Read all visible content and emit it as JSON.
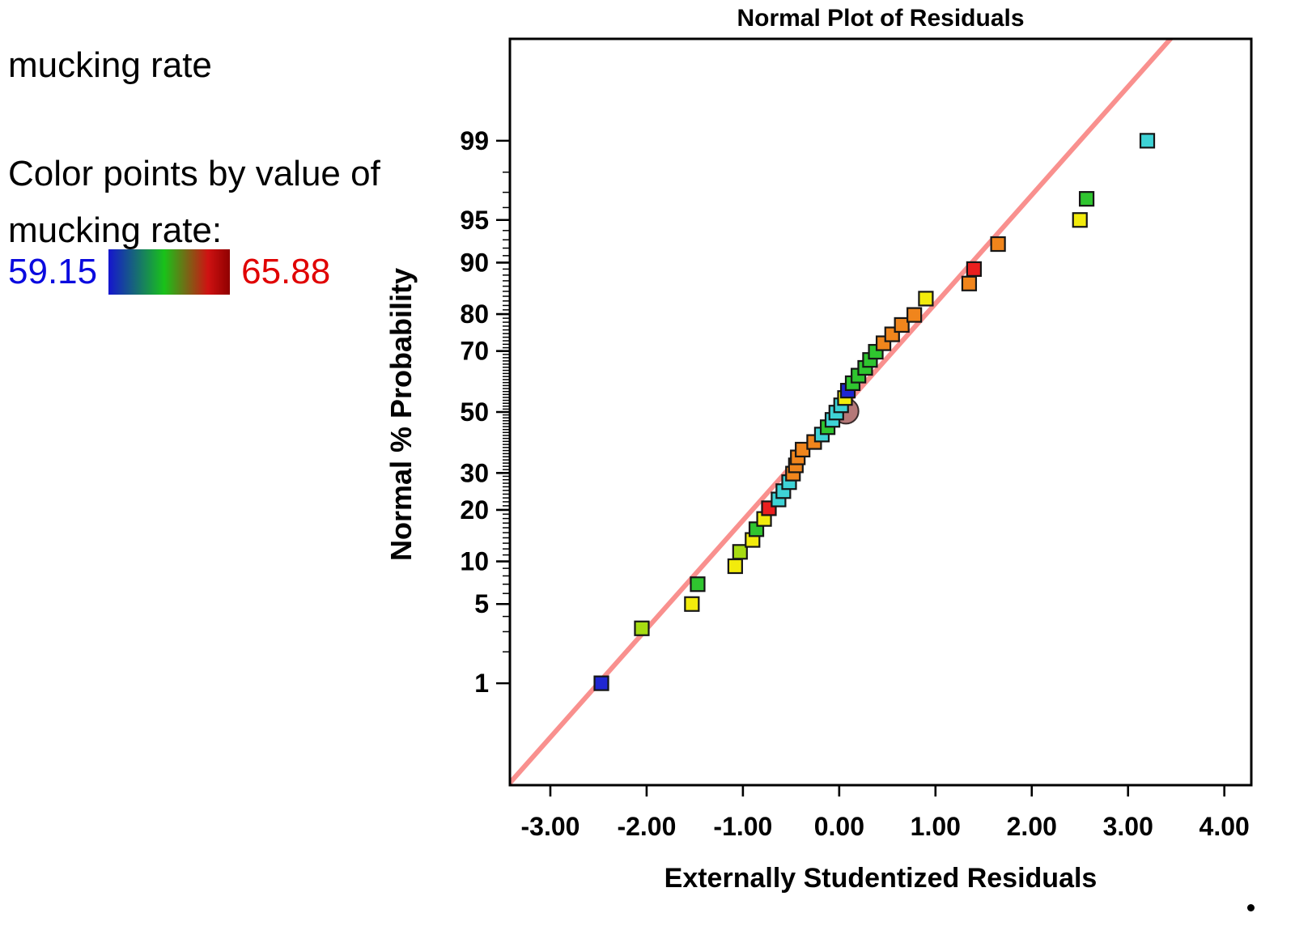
{
  "legend": {
    "dataset_label": "mucking rate",
    "color_by_line1": "Color points by value of",
    "color_by_line2": "mucking rate:",
    "min_value": "59.15",
    "max_value": "65.88",
    "min_color": "#0a0adf",
    "max_color": "#e00000",
    "gradient_colors": [
      "#1515cf",
      "#19c219",
      "#cf1212",
      "#8f0000"
    ]
  },
  "chart_data": {
    "type": "scatter",
    "title": "Normal Plot of Residuals",
    "xlabel": "Externally Studentized Residuals",
    "ylabel": "Normal % Probability",
    "y_scale": "normal-probability",
    "grid": false,
    "xlim": [
      -3.42,
      4.28
    ],
    "probit_lim": [
      -3.2,
      3.2
    ],
    "x_ticks": [
      -3,
      -2,
      -1,
      0,
      1,
      2,
      3,
      4
    ],
    "x_tick_labels": [
      "-3.00",
      "-2.00",
      "-1.00",
      "0.00",
      "1.00",
      "2.00",
      "3.00",
      "4.00"
    ],
    "y_ticks": [
      1,
      5,
      10,
      20,
      30,
      50,
      70,
      80,
      90,
      95,
      99
    ],
    "fit_line": {
      "slope": 0.93,
      "intercept": 0.0,
      "color": "#f9908e",
      "width": 6
    },
    "marker": {
      "size": 17,
      "stroke": "#161616"
    },
    "colors": {
      "blue": "#2026d2",
      "cyan": "#3ed3d6",
      "green": "#2fc52f",
      "yellowgreen": "#a6dc12",
      "yellow": "#f2eb0c",
      "orange": "#f0851c",
      "red": "#ea1f1f"
    },
    "mean_point": {
      "x": 0.07,
      "p": 50.3,
      "radius": 15.5,
      "color": "#b57878",
      "stroke": "#3a2c2c"
    },
    "points": [
      {
        "x": -2.47,
        "p": 1.0,
        "c": "blue"
      },
      {
        "x": -2.05,
        "p": 3.2,
        "c": "yellowgreen"
      },
      {
        "x": -1.53,
        "p": 5.0,
        "c": "yellow"
      },
      {
        "x": -1.47,
        "p": 7.0,
        "c": "green"
      },
      {
        "x": -1.08,
        "p": 9.3,
        "c": "yellow"
      },
      {
        "x": -1.03,
        "p": 11.5,
        "c": "yellowgreen"
      },
      {
        "x": -0.9,
        "p": 13.6,
        "c": "yellow"
      },
      {
        "x": -0.86,
        "p": 15.7,
        "c": "green"
      },
      {
        "x": -0.78,
        "p": 17.9,
        "c": "yellow"
      },
      {
        "x": -0.73,
        "p": 20.4,
        "c": "red"
      },
      {
        "x": -0.63,
        "p": 22.6,
        "c": "cyan"
      },
      {
        "x": -0.58,
        "p": 24.8,
        "c": "cyan"
      },
      {
        "x": -0.52,
        "p": 27.3,
        "c": "cyan"
      },
      {
        "x": -0.48,
        "p": 29.8,
        "c": "orange"
      },
      {
        "x": -0.45,
        "p": 32.3,
        "c": "orange"
      },
      {
        "x": -0.43,
        "p": 34.8,
        "c": "orange"
      },
      {
        "x": -0.38,
        "p": 37.3,
        "c": "orange"
      },
      {
        "x": -0.26,
        "p": 39.8,
        "c": "orange"
      },
      {
        "x": -0.18,
        "p": 42.3,
        "c": "cyan"
      },
      {
        "x": -0.12,
        "p": 44.8,
        "c": "green"
      },
      {
        "x": -0.07,
        "p": 47.3,
        "c": "cyan"
      },
      {
        "x": -0.03,
        "p": 49.8,
        "c": "cyan"
      },
      {
        "x": 0.02,
        "p": 52.3,
        "c": "cyan"
      },
      {
        "x": 0.06,
        "p": 54.8,
        "c": "yellow"
      },
      {
        "x": 0.09,
        "p": 57.3,
        "c": "blue"
      },
      {
        "x": 0.14,
        "p": 59.8,
        "c": "green"
      },
      {
        "x": 0.2,
        "p": 62.3,
        "c": "green"
      },
      {
        "x": 0.27,
        "p": 64.8,
        "c": "green"
      },
      {
        "x": 0.32,
        "p": 67.3,
        "c": "green"
      },
      {
        "x": 0.38,
        "p": 69.8,
        "c": "green"
      },
      {
        "x": 0.46,
        "p": 72.3,
        "c": "orange"
      },
      {
        "x": 0.55,
        "p": 74.8,
        "c": "orange"
      },
      {
        "x": 0.65,
        "p": 77.3,
        "c": "orange"
      },
      {
        "x": 0.78,
        "p": 79.8,
        "c": "orange"
      },
      {
        "x": 0.9,
        "p": 83.5,
        "c": "yellow"
      },
      {
        "x": 1.35,
        "p": 86.5,
        "c": "orange"
      },
      {
        "x": 1.4,
        "p": 89.0,
        "c": "red"
      },
      {
        "x": 1.65,
        "p": 92.5,
        "c": "orange"
      },
      {
        "x": 2.5,
        "p": 95.0,
        "c": "yellow"
      },
      {
        "x": 2.57,
        "p": 96.6,
        "c": "green"
      },
      {
        "x": 3.2,
        "p": 99.0,
        "c": "cyan"
      }
    ]
  }
}
